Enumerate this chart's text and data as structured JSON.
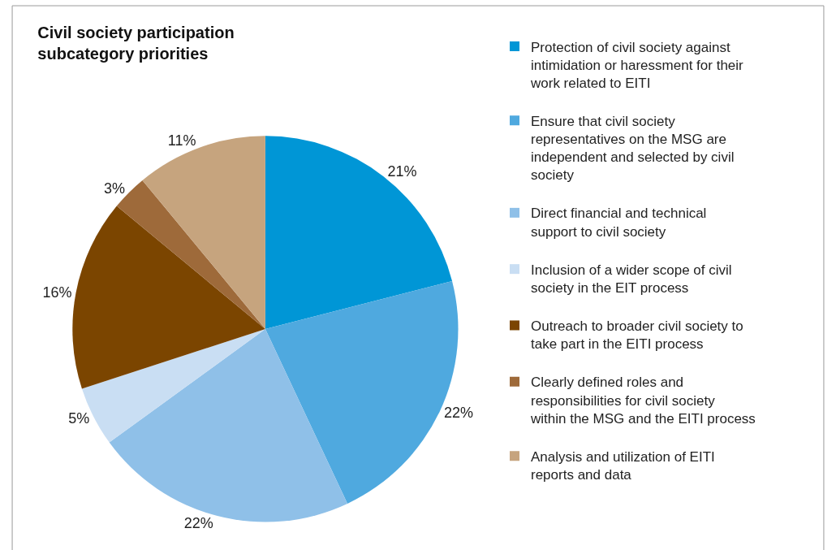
{
  "chart_data": {
    "type": "pie",
    "title": "Civil society participation subcategory priorities",
    "categories": [
      "Protection of civil society against intimidation or haressment for their work related to EITI",
      "Ensure that civil society representatives on the MSG are independent and selected by civil society",
      "Direct financial and technical support to civil society",
      "Inclusion of a wider scope of civil society in the EIT process",
      "Outreach to broader civil society to take part in the EITI process",
      "Clearly defined roles and responsibilities for civil society within the MSG and the EITI process",
      "Analysis and utilization of EITI reports and data"
    ],
    "values": [
      21,
      22,
      22,
      5,
      16,
      3,
      11
    ],
    "value_labels": [
      "21%",
      "22%",
      "22%",
      "5%",
      "16%",
      "3%",
      "11%"
    ],
    "colors": [
      "#0096d6",
      "#4fa9df",
      "#8fc0e8",
      "#c9def3",
      "#7b4500",
      "#9e6a3a",
      "#c6a47e"
    ],
    "legend": "right"
  }
}
